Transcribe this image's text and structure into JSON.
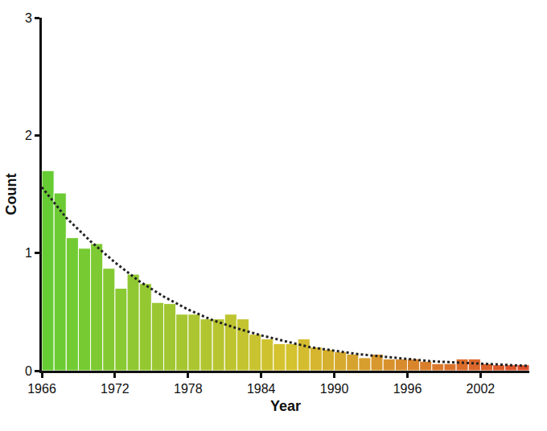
{
  "chart_data": {
    "type": "histogram",
    "x_label": "Year",
    "y_label": "Count",
    "bins": [
      1966,
      1967,
      1968,
      1969,
      1970,
      1971,
      1972,
      1973,
      1974,
      1975,
      1976,
      1977,
      1978,
      1979,
      1980,
      1981,
      1982,
      1983,
      1984,
      1985,
      1986,
      1987,
      1988,
      1989,
      1990,
      1991,
      1992,
      1993,
      1994,
      1995,
      1996,
      1997,
      1998,
      1999,
      2000,
      2001,
      2002,
      2003,
      2004,
      2005,
      2006
    ],
    "xlim": [
      1966,
      2006
    ],
    "xticks": [
      1966,
      1972,
      1978,
      1984,
      1990,
      1996,
      2002
    ],
    "ylim": [
      0,
      3
    ],
    "yticks": [
      0,
      1,
      2,
      3
    ],
    "grid": false,
    "series": [
      {
        "type": "bar",
        "values": [
          1.7,
          1.51,
          1.13,
          1.04,
          1.08,
          0.87,
          0.7,
          0.82,
          0.74,
          0.58,
          0.57,
          0.48,
          0.48,
          0.44,
          0.44,
          0.48,
          0.44,
          0.31,
          0.27,
          0.23,
          0.23,
          0.27,
          0.2,
          0.18,
          0.16,
          0.14,
          0.11,
          0.14,
          0.1,
          0.1,
          0.1,
          0.08,
          0.06,
          0.06,
          0.1,
          0.1,
          0.06,
          0.05,
          0.05,
          0.05
        ],
        "colors": [
          "#66cc33",
          "#6ccb33",
          "#72cb33",
          "#77ca32",
          "#7dca32",
          "#83c932",
          "#89c932",
          "#8fc832",
          "#94c831",
          "#9ac731",
          "#a0c731",
          "#a6c631",
          "#abc630",
          "#b1c530",
          "#b7c530",
          "#bdc430",
          "#c3c430",
          "#c8c32f",
          "#cec32f",
          "#d4c22f",
          "#d4c22f",
          "#d4bc2f",
          "#d5b62e",
          "#d5b02e",
          "#d6aa2e",
          "#d6a42e",
          "#d79e2d",
          "#d7982d",
          "#d8922d",
          "#d88c2d",
          "#d9852c",
          "#d97f2c",
          "#da792c",
          "#da732c",
          "#db6d2b",
          "#db672b",
          "#dc612b",
          "#dc5b2b",
          "#dd552a",
          "#dd4f2a"
        ]
      },
      {
        "type": "line",
        "line_style": "dotted",
        "color": "#222222",
        "x": [
          1966,
          1968,
          1970,
          1972,
          1974,
          1976,
          1978,
          1980,
          1982,
          1984,
          1986,
          1988,
          1990,
          1992,
          1994,
          1996,
          1998,
          2000,
          2002,
          2004,
          2006
        ],
        "values": [
          1.56,
          1.3,
          1.1,
          0.92,
          0.76,
          0.63,
          0.52,
          0.43,
          0.36,
          0.3,
          0.25,
          0.2,
          0.17,
          0.14,
          0.12,
          0.1,
          0.08,
          0.07,
          0.06,
          0.05,
          0.04
        ]
      }
    ]
  }
}
